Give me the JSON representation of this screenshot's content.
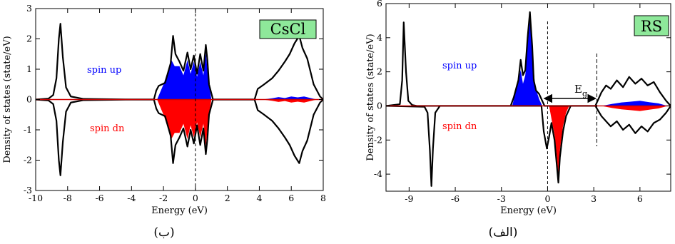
{
  "captions": {
    "left": "(ب)",
    "right": "(الف)"
  },
  "chart_data": [
    {
      "type": "area",
      "panel_label": "CsCl",
      "xlabel": "Energy (eV)",
      "ylabel": "Density of states (state/eV)",
      "xlim": [
        -10,
        8
      ],
      "ylim": [
        -3,
        3
      ],
      "xticks": [
        -10,
        -8,
        -6,
        -4,
        -2,
        0,
        2,
        4,
        6,
        8
      ],
      "yticks": [
        -3,
        -2,
        -1,
        0,
        1,
        2,
        3
      ],
      "fermi_level": 0,
      "annotations": {
        "up": "spin up",
        "dn": "spin dn"
      },
      "colors": {
        "up": "#0000ff",
        "dn": "#ff0000",
        "total": "#000000",
        "baseline": "#cc0000",
        "label_bg": "#8ee89a"
      },
      "series": [
        {
          "role": "total-up",
          "x": [
            -10,
            -9.2,
            -8.9,
            -8.7,
            -8.55,
            -8.45,
            -8.3,
            -8.1,
            -7.8,
            -7.0,
            -4,
            -2.6,
            -2.45,
            -2.3,
            -1.9,
            -1.55,
            -1.4,
            -1.25,
            -1.0,
            -0.75,
            -0.5,
            -0.3,
            -0.1,
            0.1,
            0.3,
            0.5,
            0.65,
            0.75,
            0.85,
            1.1,
            3.7,
            3.9,
            4.3,
            4.8,
            5.2,
            5.6,
            5.9,
            6.2,
            6.5,
            6.7,
            7.0,
            7.4,
            7.8,
            8
          ],
          "y": [
            0,
            0.03,
            0.15,
            0.7,
            2.0,
            2.5,
            1.4,
            0.4,
            0.1,
            0.02,
            0,
            0,
            0.3,
            0.45,
            0.55,
            1.2,
            2.1,
            1.5,
            1.25,
            0.95,
            1.55,
            1.0,
            1.45,
            0.85,
            1.5,
            0.95,
            1.8,
            1.3,
            0.5,
            0,
            0,
            0.35,
            0.5,
            0.7,
            0.95,
            1.25,
            1.5,
            1.85,
            2.1,
            1.7,
            1.35,
            0.5,
            0.1,
            0
          ]
        },
        {
          "role": "total-dn",
          "x": [
            -10,
            -9.2,
            -8.9,
            -8.7,
            -8.55,
            -8.45,
            -8.3,
            -8.1,
            -7.8,
            -7.0,
            -4,
            -2.6,
            -2.45,
            -2.3,
            -1.9,
            -1.55,
            -1.4,
            -1.25,
            -1.0,
            -0.75,
            -0.5,
            -0.3,
            -0.1,
            0.1,
            0.3,
            0.5,
            0.65,
            0.75,
            0.85,
            1.1,
            3.7,
            3.9,
            4.3,
            4.8,
            5.2,
            5.6,
            5.9,
            6.2,
            6.5,
            6.7,
            7.0,
            7.4,
            7.8,
            8
          ],
          "y": [
            0,
            -0.03,
            -0.15,
            -0.7,
            -2.0,
            -2.5,
            -1.4,
            -0.4,
            -0.1,
            -0.02,
            0,
            0,
            -0.3,
            -0.45,
            -0.55,
            -1.2,
            -2.1,
            -1.5,
            -1.25,
            -0.95,
            -1.55,
            -1.0,
            -1.45,
            -0.85,
            -1.5,
            -0.95,
            -1.8,
            -1.3,
            -0.5,
            0,
            0,
            -0.35,
            -0.5,
            -0.7,
            -0.95,
            -1.25,
            -1.5,
            -1.85,
            -2.1,
            -1.7,
            -1.35,
            -0.5,
            -0.1,
            0
          ]
        },
        {
          "role": "partial-up",
          "x": [
            -2.4,
            -2.0,
            -1.5,
            -1.3,
            -1.0,
            -0.75,
            -0.5,
            -0.3,
            -0.1,
            0.1,
            0.3,
            0.5,
            0.65,
            0.8,
            1.0
          ],
          "y": [
            0,
            0.5,
            1.3,
            1.1,
            1.1,
            0.8,
            1.3,
            0.85,
            1.25,
            0.75,
            1.25,
            0.8,
            1.55,
            0.7,
            0
          ]
        },
        {
          "role": "partial-dn",
          "x": [
            -2.4,
            -2.0,
            -1.5,
            -1.3,
            -1.0,
            -0.75,
            -0.5,
            -0.3,
            -0.1,
            0.1,
            0.3,
            0.5,
            0.65,
            0.8,
            1.0
          ],
          "y": [
            0,
            -0.5,
            -1.3,
            -1.1,
            -1.1,
            -0.8,
            -1.3,
            -0.85,
            -1.25,
            -0.75,
            -1.25,
            -0.8,
            -1.55,
            -0.7,
            0
          ]
        },
        {
          "role": "small-up",
          "x": [
            4.2,
            4.8,
            5.2,
            5.6,
            6.0,
            6.4,
            6.8,
            7.2,
            7.6
          ],
          "y": [
            0,
            0.04,
            0.08,
            0.05,
            0.1,
            0.07,
            0.1,
            0.05,
            0
          ]
        },
        {
          "role": "small-dn",
          "x": [
            4.2,
            4.8,
            5.2,
            5.6,
            6.0,
            6.4,
            6.8,
            7.2,
            7.6
          ],
          "y": [
            0,
            -0.04,
            -0.08,
            -0.05,
            -0.1,
            -0.07,
            -0.1,
            -0.05,
            0
          ]
        }
      ]
    },
    {
      "type": "area",
      "panel_label": "RS",
      "xlabel": "Energy (eV)",
      "ylabel": "Density of states (state/eV)",
      "xlim": [
        -10.5,
        8
      ],
      "ylim": [
        -5,
        6
      ],
      "xticks": [
        -9,
        -6,
        -3,
        0,
        3,
        6
      ],
      "yticks": [
        -4,
        -2,
        0,
        2,
        4,
        6
      ],
      "fermi_level": 0,
      "gap_label": "E",
      "gap_subscript": "g",
      "gap_range": [
        -0.3,
        3.2
      ],
      "annotations": {
        "up": "spin up",
        "dn": "spin dn"
      },
      "colors": {
        "up": "#0000ff",
        "dn": "#ff0000",
        "total": "#000000",
        "baseline": "#cc0000",
        "label_bg": "#8ee89a"
      },
      "series": [
        {
          "role": "total-up",
          "x": [
            -10.5,
            -9.6,
            -9.45,
            -9.35,
            -9.2,
            -9.05,
            -8.8,
            -8.5,
            -2.4,
            -2.2,
            -1.9,
            -1.75,
            -1.6,
            -1.45,
            -1.3,
            -1.15,
            -1.0,
            -0.9,
            -0.75,
            -0.55,
            -0.35,
            -0.2,
            3.1,
            3.3,
            3.5,
            3.8,
            4.1,
            4.5,
            4.9,
            5.3,
            5.7,
            6.1,
            6.5,
            6.9,
            7.3,
            7.7,
            8
          ],
          "y": [
            0,
            0.1,
            1.5,
            4.9,
            2.0,
            0.3,
            0.05,
            0,
            0,
            0.5,
            1.5,
            2.7,
            1.8,
            2.1,
            4.0,
            5.5,
            3.5,
            1.5,
            0.9,
            0.7,
            0.3,
            0,
            0,
            0.4,
            0.8,
            1.2,
            1.0,
            1.5,
            1.1,
            1.7,
            1.3,
            1.6,
            1.2,
            1.4,
            0.8,
            0.3,
            0
          ]
        },
        {
          "role": "total-dn",
          "x": [
            -10.5,
            -8.0,
            -7.8,
            -7.65,
            -7.55,
            -7.45,
            -7.3,
            -7.0,
            -0.4,
            -0.25,
            -0.05,
            0.1,
            0.25,
            0.45,
            0.6,
            0.7,
            0.8,
            1.0,
            1.2,
            1.5,
            3.1,
            3.3,
            3.5,
            3.8,
            4.1,
            4.5,
            4.9,
            5.3,
            5.7,
            6.1,
            6.5,
            6.9,
            7.3,
            7.7,
            8
          ],
          "y": [
            0,
            -0.05,
            -0.4,
            -2.6,
            -4.7,
            -2.5,
            -0.4,
            0,
            0,
            -1.5,
            -2.5,
            -1.8,
            -1.0,
            -2.0,
            -3.5,
            -4.5,
            -3.0,
            -1.5,
            -0.6,
            0,
            0,
            -0.3,
            -0.6,
            -0.9,
            -1.2,
            -0.9,
            -1.4,
            -1.1,
            -1.6,
            -1.2,
            -1.5,
            -1.0,
            -0.8,
            -0.4,
            0
          ]
        },
        {
          "role": "partial-up",
          "x": [
            -2.3,
            -2.0,
            -1.75,
            -1.6,
            -1.45,
            -1.3,
            -1.15,
            -1.0,
            -0.8,
            -0.55,
            -0.35
          ],
          "y": [
            0,
            1.1,
            2.1,
            1.3,
            1.8,
            3.6,
            5.1,
            3.0,
            1.1,
            0.4,
            0
          ]
        },
        {
          "role": "partial-dn",
          "x": [
            0.1,
            0.3,
            0.45,
            0.6,
            0.7,
            0.8,
            1.0,
            1.2,
            1.4
          ],
          "y": [
            0,
            -1.0,
            -1.7,
            -3.0,
            -4.1,
            -2.6,
            -1.2,
            -0.4,
            0
          ]
        },
        {
          "role": "small-up",
          "x": [
            3.5,
            4.2,
            4.8,
            5.4,
            6.0,
            6.6,
            7.2,
            7.8
          ],
          "y": [
            0,
            0.12,
            0.2,
            0.25,
            0.3,
            0.22,
            0.15,
            0
          ]
        },
        {
          "role": "small-dn",
          "x": [
            3.5,
            4.2,
            4.8,
            5.4,
            6.0,
            6.6,
            7.2,
            7.8
          ],
          "y": [
            0,
            -0.12,
            -0.2,
            -0.25,
            -0.3,
            -0.22,
            -0.15,
            0
          ]
        }
      ]
    }
  ]
}
